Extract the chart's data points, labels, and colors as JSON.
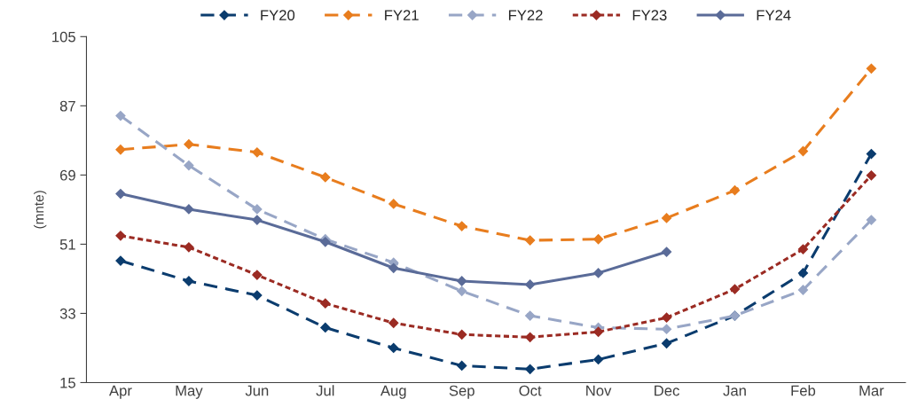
{
  "chart_data": {
    "type": "line",
    "ylabel": "(mnte)",
    "categories": [
      "Apr",
      "May",
      "Jun",
      "Jul",
      "Aug",
      "Sep",
      "Oct",
      "Nov",
      "Dec",
      "Jan",
      "Feb",
      "Mar"
    ],
    "series": [
      {
        "name": "FY20",
        "color": "#0b3c6e",
        "line_style": "dashed",
        "values": [
          46.7,
          41.4,
          37.7,
          29.3,
          24.0,
          19.4,
          18.5,
          21.0,
          25.2,
          32.4,
          43.5,
          74.5
        ]
      },
      {
        "name": "FY21",
        "color": "#e87d1e",
        "line_style": "dashed",
        "values": [
          75.6,
          77.0,
          74.9,
          68.4,
          61.5,
          55.7,
          52.0,
          52.3,
          57.8,
          65.0,
          75.2,
          96.7
        ]
      },
      {
        "name": "FY22",
        "color": "#98a6c6",
        "line_style": "dashed",
        "values": [
          84.4,
          71.5,
          60.1,
          52.3,
          46.2,
          38.8,
          32.4,
          29.3,
          28.9,
          32.4,
          39.1,
          57.3
        ]
      },
      {
        "name": "FY23",
        "color": "#9b2b23",
        "line_style": "dotted",
        "values": [
          53.2,
          50.2,
          43.0,
          35.6,
          30.5,
          27.5,
          26.8,
          28.2,
          31.9,
          39.3,
          49.7,
          68.9
        ]
      },
      {
        "name": "FY24",
        "color": "#5a6b98",
        "line_style": "solid",
        "values": [
          64.1,
          60.1,
          57.3,
          51.6,
          44.8,
          41.4,
          40.5,
          43.5,
          49.0,
          null,
          null,
          null
        ]
      }
    ],
    "ylim": [
      15,
      105
    ],
    "yticks": [
      15,
      33,
      51,
      69,
      87,
      105
    ],
    "grid": false,
    "legend": "top",
    "marker": "diamond"
  }
}
